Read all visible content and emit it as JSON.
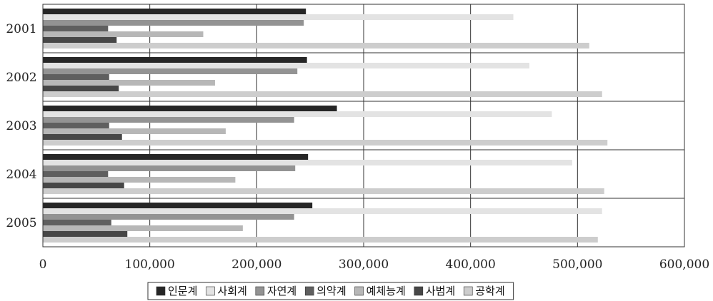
{
  "chart_data": {
    "type": "bar",
    "orientation": "horizontal",
    "categories": [
      "2001",
      "2002",
      "2003",
      "2004",
      "2005"
    ],
    "series": [
      {
        "name": "인문계",
        "color": "#262626",
        "values": [
          246000,
          247000,
          275000,
          248000,
          252000
        ]
      },
      {
        "name": "사회계",
        "color": "#e3e3e3",
        "values": [
          440000,
          455000,
          476000,
          495000,
          523000
        ]
      },
      {
        "name": "자연계",
        "color": "#939393",
        "values": [
          244000,
          238000,
          235000,
          236000,
          235000
        ]
      },
      {
        "name": "의약계",
        "color": "#5f5f5f",
        "values": [
          61000,
          62000,
          62000,
          61000,
          64000
        ]
      },
      {
        "name": "예체능계",
        "color": "#b7b7b7",
        "values": [
          150000,
          161000,
          171000,
          180000,
          187000
        ]
      },
      {
        "name": "사범계",
        "color": "#474747",
        "values": [
          69000,
          71000,
          74000,
          76000,
          79000
        ]
      },
      {
        "name": "공학계",
        "color": "#cdcdcd",
        "values": [
          511000,
          523000,
          528000,
          525000,
          519000
        ]
      }
    ],
    "xlim": [
      0,
      600000
    ],
    "xticks": [
      "0",
      "100,000",
      "200,000",
      "300,000",
      "400,000",
      "500,000",
      "600,000"
    ],
    "xtick_values": [
      0,
      100000,
      200000,
      300000,
      400000,
      500000,
      600000
    ],
    "grid": "vertical major gridlines",
    "legend_position": "bottom"
  }
}
